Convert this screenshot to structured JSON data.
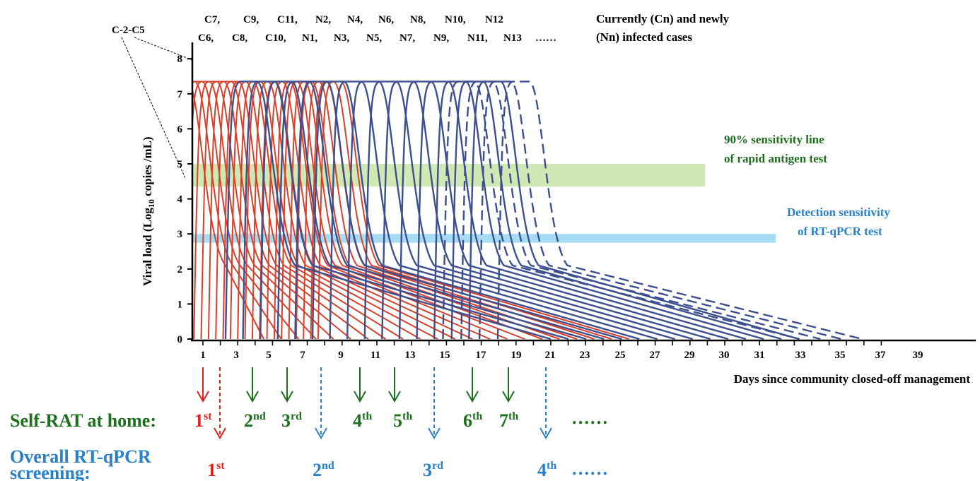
{
  "chart_data": {
    "type": "line",
    "title": "",
    "xlabel": "Days since community closed-off management",
    "ylabel_main": "Viral load (Log",
    "ylabel_sub": "10",
    "ylabel_tail": " copies /mL)",
    "x_ticks": [
      "1",
      "3",
      "5",
      "7",
      "9",
      "11",
      "13",
      "15",
      "17",
      "19",
      "21",
      "23",
      "25",
      "27",
      "29",
      "30",
      "31",
      "33",
      "35",
      "37",
      "39"
    ],
    "y_ticks": [
      "0",
      "1",
      "2",
      "3",
      "4",
      "5",
      "6",
      "7",
      "8"
    ],
    "ylim": [
      0,
      8
    ],
    "xlim": [
      1,
      39
    ],
    "peak_viral_load": 7.35,
    "bands": [
      {
        "name": "rat",
        "label_1": "90% sensitivity line",
        "label_2": "of rapid antigen test",
        "y_range": [
          4.35,
          5.0
        ],
        "color": "#cfe8b4"
      },
      {
        "name": "pcr",
        "label_1": "Detection sensitivity",
        "label_2": "of RT-qPCR test",
        "y_range": [
          2.75,
          3.0
        ],
        "color": "#a6dcf3"
      }
    ],
    "curve_labels_top": [
      "C7,",
      "C9,",
      "C11,",
      "N2,",
      "N4,",
      "N6,",
      "N8,",
      "N10,",
      "N12"
    ],
    "curve_labels_bottom": [
      "C6,",
      "C8,",
      "C10,",
      "N1,",
      "N3,",
      "N5,",
      "N7,",
      "N9,",
      "N11,",
      "N13",
      "……"
    ],
    "legend_text_1": "Currently (Cn) and newly",
    "legend_text_2": "(Nn) infected cases",
    "group_label": "C-2-C5",
    "series": [
      {
        "group": "current",
        "color": "#d8402a",
        "count": 22
      },
      {
        "group": "new",
        "color": "#3d4f8f",
        "count": 15
      },
      {
        "group": "new-projected",
        "color": "#3d4f8f",
        "count": 4,
        "dashed": true
      }
    ],
    "rat_schedule_days": [
      1,
      4,
      6,
      10,
      12,
      16,
      18
    ],
    "pcr_schedule_days": [
      2,
      8,
      14,
      20
    ]
  },
  "schedule": {
    "rat_title": "Self-RAT at home:",
    "rat_items": [
      {
        "n": "1",
        "suf": "st"
      },
      {
        "n": "2",
        "suf": "nd"
      },
      {
        "n": "3",
        "suf": "rd"
      },
      {
        "n": "4",
        "suf": "th"
      },
      {
        "n": "5",
        "suf": "th"
      },
      {
        "n": "6",
        "suf": "th"
      },
      {
        "n": "7",
        "suf": "th"
      }
    ],
    "rat_more": "……",
    "pcr_title_1": "Overall RT-qPCR",
    "pcr_title_2": "screening:",
    "pcr_items": [
      {
        "n": "1",
        "suf": "st"
      },
      {
        "n": "2",
        "suf": "nd"
      },
      {
        "n": "3",
        "suf": "rd"
      },
      {
        "n": "4",
        "suf": "th"
      }
    ],
    "pcr_more": "……"
  },
  "colors": {
    "current": "#d8402a",
    "new": "#3d4f8f",
    "rat_text": "#1d6e1d",
    "pcr_text": "#2a80c8",
    "first_mark": "#e0201b"
  }
}
